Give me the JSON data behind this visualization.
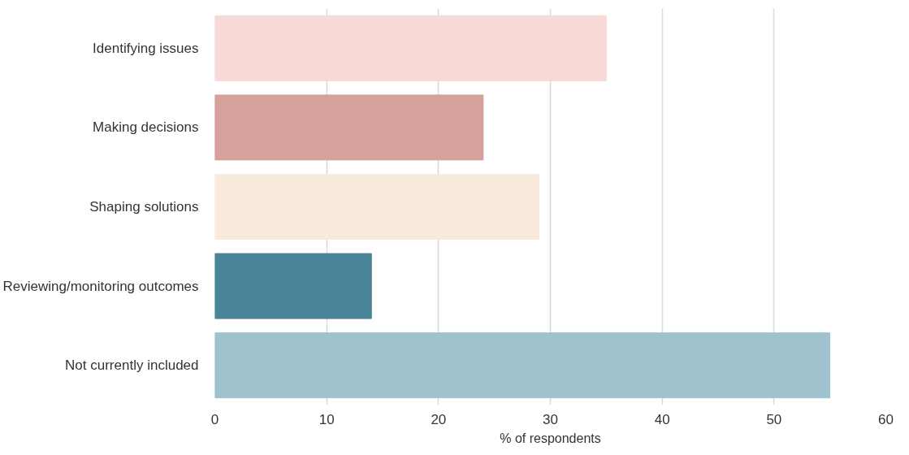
{
  "chart_data": {
    "type": "bar",
    "orientation": "horizontal",
    "categories": [
      "Identifying issues",
      "Making decisions",
      "Shaping solutions",
      "Reviewing/monitoring outcomes",
      "Not currently included"
    ],
    "values": [
      35,
      24,
      29,
      14,
      55
    ],
    "colors": [
      "#f7dad7",
      "#d4a19c",
      "#f8eadd",
      "#4a8498",
      "#9fc3ce"
    ],
    "xlim": [
      0,
      60
    ],
    "xticks": [
      0,
      10,
      20,
      30,
      40,
      50,
      60
    ],
    "xlabel": "% of respondents",
    "grid": "x"
  }
}
